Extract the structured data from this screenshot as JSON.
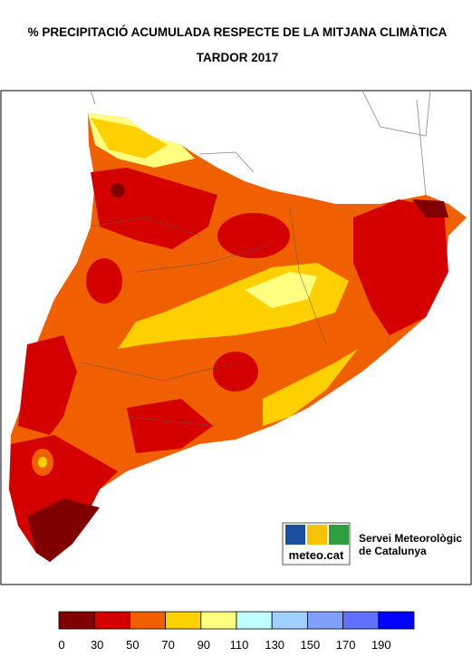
{
  "header": {
    "title": "% PRECIPITACIÓ ACUMULADA RESPECTE DE LA MITJANA CLIMÀTICA",
    "subtitle": "TARDOR 2017"
  },
  "logo": {
    "brand": "meteo.cat",
    "line1": "Servei Meteorològic",
    "line2": "de Catalunya"
  },
  "legend": {
    "colors": [
      "#800000",
      "#d40000",
      "#f06000",
      "#ffd000",
      "#ffff80",
      "#c0ffff",
      "#a0d0ff",
      "#80a0ff",
      "#6070ff",
      "#0000ff"
    ],
    "labels": [
      "0",
      "30",
      "50",
      "70",
      "90",
      "110",
      "130",
      "150",
      "170",
      "190"
    ]
  }
}
